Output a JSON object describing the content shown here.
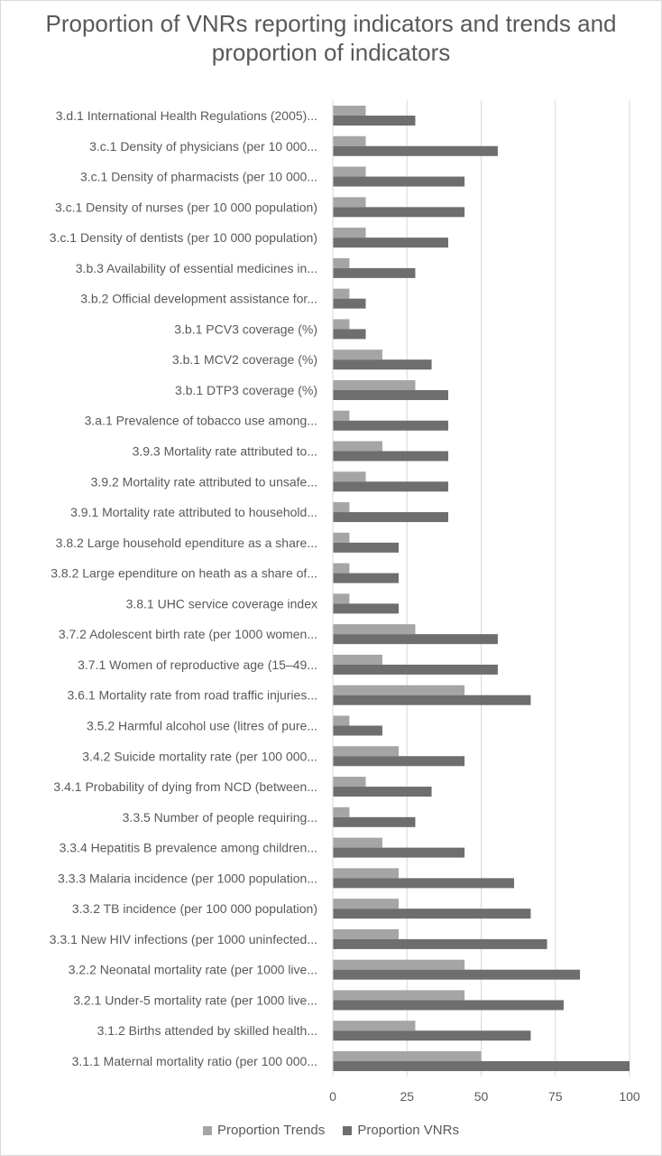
{
  "chart_data": {
    "type": "bar",
    "orientation": "horizontal",
    "title": "Proportion of VNRs reporting indicators and trends and proportion of indicators",
    "xlabel": "",
    "ylabel": "",
    "xlim": [
      0,
      100
    ],
    "ticks": [
      0,
      25,
      50,
      75,
      100
    ],
    "tick_labels": [
      "0",
      "25",
      "50",
      "75",
      "100"
    ],
    "grid": true,
    "legend_position": "bottom",
    "categories": [
      "3.d.1 International Health Regulations (2005)...",
      "3.c.1 Density of physicians (per 10 000...",
      "3.c.1 Density of pharmacists (per 10 000...",
      "3.c.1 Density of nurses (per 10 000 population)",
      "3.c.1 Density of dentists (per 10 000 population)",
      "3.b.3 Availability of essential medicines in...",
      "3.b.2 Official development assistance for...",
      "3.b.1 PCV3 coverage (%)",
      "3.b.1 MCV2 coverage (%)",
      "3.b.1 DTP3 coverage (%)",
      "3.a.1 Prevalence of tobacco use among...",
      "3.9.3 Mortality rate attributed to...",
      "3.9.2 Mortality rate attributed to unsafe...",
      "3.9.1 Mortality rate attributed to household...",
      "3.8.2 Large household ependiture as a share...",
      "3.8.2 Large ependiture on heath as a share of...",
      "3.8.1 UHC service coverage index",
      "3.7.2 Adolescent birth rate (per 1000 women...",
      "3.7.1 Women of reproductive age (15–49...",
      "3.6.1 Mortality rate from road traffic injuries...",
      "3.5.2 Harmful alcohol use (litres of pure...",
      "3.4.2 Suicide mortality rate (per 100 000...",
      "3.4.1 Probability of dying from NCD (between...",
      "3.3.5 Number of people requiring...",
      "3.3.4 Hepatitis B prevalence among children...",
      "3.3.3 Malaria incidence (per 1000 population...",
      "3.3.2 TB incidence (per 100 000 population)",
      "3.3.1 New HIV infections (per 1000 uninfected...",
      "3.2.2 Neonatal mortality rate (per 1000 live...",
      "3.2.1 Under-5 mortality rate (per 1000 live...",
      "3.1.2 Births attended by skilled health...",
      "3.1.1 Maternal mortality ratio (per 100 000..."
    ],
    "series": [
      {
        "name": "Proportion Trends",
        "color": "#a5a5a5",
        "values": [
          11.1,
          11.1,
          11.1,
          11.1,
          11.1,
          5.6,
          5.6,
          5.6,
          16.7,
          27.8,
          5.6,
          16.7,
          11.1,
          5.6,
          5.6,
          5.6,
          5.6,
          27.8,
          16.7,
          44.4,
          5.6,
          22.2,
          11.1,
          5.6,
          16.7,
          22.2,
          22.2,
          22.2,
          44.4,
          44.4,
          27.8,
          50.0
        ]
      },
      {
        "name": "Proportion VNRs",
        "color": "#6e6e6e",
        "values": [
          27.8,
          55.6,
          44.4,
          44.4,
          38.9,
          27.8,
          11.1,
          11.1,
          33.3,
          38.9,
          38.9,
          38.9,
          38.9,
          38.9,
          22.2,
          22.2,
          22.2,
          55.6,
          55.6,
          66.7,
          16.7,
          44.4,
          33.3,
          27.8,
          44.4,
          61.1,
          66.7,
          72.2,
          83.3,
          77.8,
          66.7,
          100.0
        ]
      }
    ]
  }
}
